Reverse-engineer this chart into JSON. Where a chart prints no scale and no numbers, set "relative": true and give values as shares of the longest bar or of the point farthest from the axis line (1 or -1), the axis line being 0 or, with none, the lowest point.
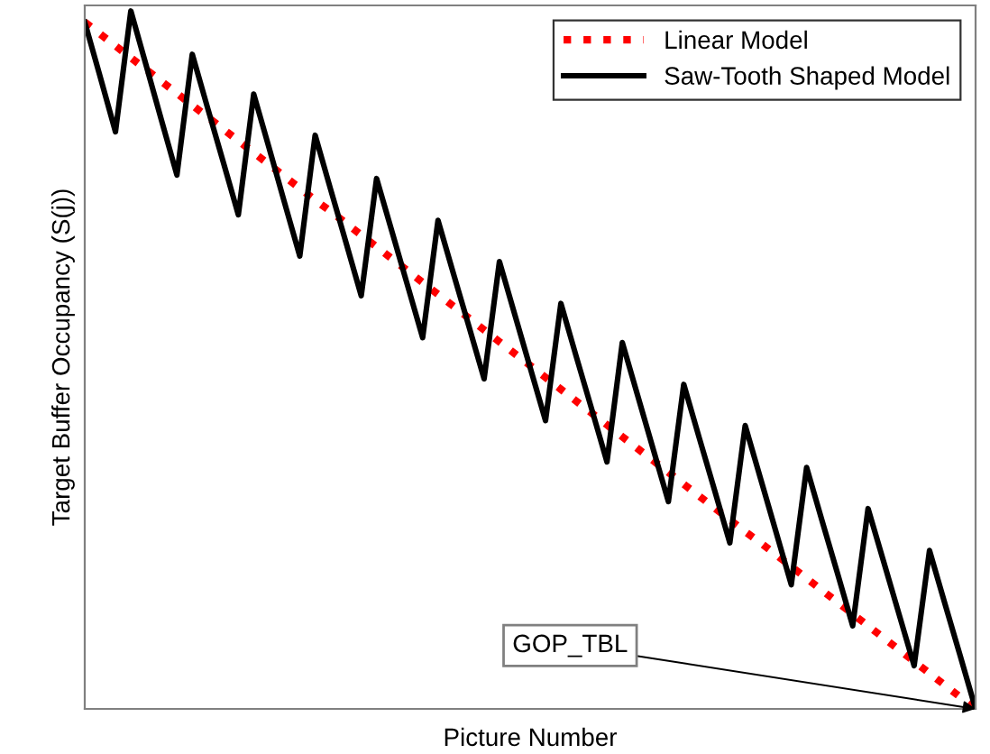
{
  "chart_data": {
    "type": "line",
    "relative": true,
    "xlabel": "Picture Number",
    "ylabel": "Target Buffer Occupancy (S(j))",
    "legend": "top right",
    "categories": [
      null,
      null,
      null,
      null,
      null,
      null,
      null,
      null,
      null,
      null,
      null,
      null,
      null,
      null,
      null,
      null,
      null,
      null,
      null,
      null,
      null,
      null,
      null,
      null,
      null,
      null,
      null,
      null,
      null,
      null,
      null,
      null,
      null,
      null,
      null,
      null,
      null,
      null,
      null,
      null,
      null,
      null,
      null,
      null,
      null,
      null,
      null,
      null,
      null,
      null,
      null,
      null,
      null,
      null,
      null,
      null,
      null,
      null,
      null
    ],
    "series": [
      {
        "name": "Linear Model",
        "color": "#ff0000",
        "line_style": "dotted",
        "values": [
          0.984,
          0.967,
          0.95,
          0.933,
          0.916,
          0.899,
          0.882,
          0.865,
          0.848,
          0.831,
          0.814,
          0.797,
          0.78,
          0.763,
          0.746,
          0.729,
          0.713,
          0.696,
          0.679,
          0.662,
          0.645,
          0.628,
          0.611,
          0.594,
          0.577,
          0.56,
          0.543,
          0.526,
          0.509,
          0.492,
          0.475,
          0.458,
          0.441,
          0.424,
          0.407,
          0.39,
          0.373,
          0.356,
          0.339,
          0.322,
          0.305,
          0.288,
          0.271,
          0.254,
          0.238,
          0.221,
          0.204,
          0.187,
          0.17,
          0.153,
          0.136,
          0.119,
          0.102,
          0.085,
          0.068,
          0.051,
          0.034,
          0.017,
          0
        ]
      },
      {
        "name": "Saw-Tooth Shaped Model",
        "color": "#000000",
        "line_style": "solid",
        "values": [
          0.984,
          0.906,
          0.827,
          1.0,
          0.922,
          0.843,
          0.765,
          0.938,
          0.861,
          0.785,
          0.708,
          0.881,
          0.804,
          0.726,
          0.649,
          0.822,
          0.745,
          0.669,
          0.592,
          0.76,
          0.684,
          0.608,
          0.532,
          0.7,
          0.624,
          0.549,
          0.473,
          0.641,
          0.565,
          0.489,
          0.413,
          0.581,
          0.505,
          0.43,
          0.354,
          0.525,
          0.449,
          0.373,
          0.297,
          0.465,
          0.389,
          0.314,
          0.238,
          0.406,
          0.33,
          0.254,
          0.178,
          0.346,
          0.27,
          0.195,
          0.119,
          0.287,
          0.212,
          0.137,
          0.062,
          0.227,
          0.151,
          0.076,
          0
        ]
      }
    ],
    "annotations": [
      "GOP_TBL"
    ]
  }
}
